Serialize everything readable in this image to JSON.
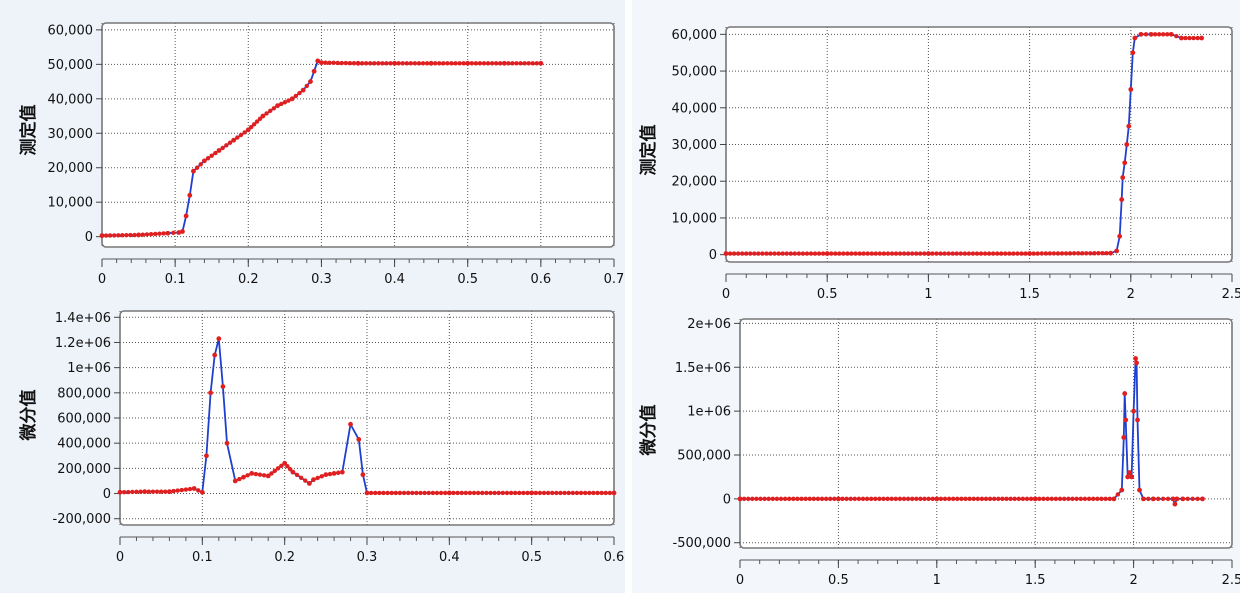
{
  "chart_data": [
    {
      "type": "line",
      "ylabel": "测定值",
      "xlim": [
        0,
        0.7
      ],
      "ylim": [
        -3000,
        62000
      ],
      "xticks": [
        0,
        0.1,
        0.2,
        0.3,
        0.4,
        0.5,
        0.6,
        0.7
      ],
      "xtick_labels": [
        "0",
        "0.1",
        "0.2",
        "0.3",
        "0.4",
        "0.5",
        "0.6",
        "0.7"
      ],
      "yticks": [
        0,
        10000,
        20000,
        30000,
        40000,
        50000,
        60000
      ],
      "ytick_labels": [
        "0",
        "10,000",
        "20,000",
        "30,000",
        "40,000",
        "50,000",
        "60,000"
      ],
      "grid": true,
      "line_color": "#1f3fd0",
      "marker_color": "#e02020",
      "series": [
        {
          "x": [
            0,
            0.05,
            0.09,
            0.105,
            0.11,
            0.115,
            0.12,
            0.125,
            0.14,
            0.16,
            0.18,
            0.2,
            0.22,
            0.24,
            0.26,
            0.275,
            0.285,
            0.29,
            0.295,
            0.3,
            0.35,
            0.4,
            0.45,
            0.5,
            0.55,
            0.6
          ],
          "y": [
            300,
            500,
            1000,
            1200,
            1500,
            6000,
            12000,
            19000,
            22000,
            25000,
            28000,
            31000,
            35000,
            38000,
            40000,
            42500,
            45000,
            48000,
            51000,
            50500,
            50300,
            50300,
            50300,
            50300,
            50300,
            50300
          ]
        }
      ]
    },
    {
      "type": "line",
      "ylabel": "微分值",
      "xlim": [
        0,
        0.6
      ],
      "ylim": [
        -250000,
        1450000
      ],
      "xticks": [
        0,
        0.1,
        0.2,
        0.3,
        0.4,
        0.5,
        0.6
      ],
      "xtick_labels": [
        "0",
        "0.1",
        "0.2",
        "0.3",
        "0.4",
        "0.5",
        "0.6"
      ],
      "yticks": [
        -200000,
        0,
        200000,
        400000,
        600000,
        800000,
        1000000,
        1200000,
        1400000
      ],
      "ytick_labels": [
        "-200,000",
        "0",
        "200,000",
        "400,000",
        "600,000",
        "800,000",
        "1e+06",
        "1.2e+06",
        "1.4e+06"
      ],
      "grid": true,
      "line_color": "#1f3fd0",
      "marker_color": "#e02020",
      "series": [
        {
          "x": [
            0,
            0.03,
            0.06,
            0.09,
            0.1,
            0.105,
            0.11,
            0.115,
            0.12,
            0.125,
            0.13,
            0.14,
            0.15,
            0.16,
            0.18,
            0.2,
            0.21,
            0.23,
            0.235,
            0.25,
            0.26,
            0.27,
            0.28,
            0.29,
            0.295,
            0.3,
            0.4,
            0.5,
            0.6
          ],
          "y": [
            10000,
            15000,
            15000,
            40000,
            10000,
            300000,
            800000,
            1100000,
            1230000,
            850000,
            400000,
            100000,
            130000,
            160000,
            140000,
            240000,
            170000,
            80000,
            110000,
            150000,
            160000,
            170000,
            550000,
            430000,
            150000,
            5000,
            5000,
            5000,
            5000
          ]
        }
      ]
    },
    {
      "type": "line",
      "ylabel": "测定值",
      "xlim": [
        0,
        2.5
      ],
      "ylim": [
        -2000,
        62000
      ],
      "xticks": [
        0,
        0.5,
        1,
        1.5,
        2,
        2.5
      ],
      "xtick_labels": [
        "0",
        "0.5",
        "1",
        "1.5",
        "2",
        "2.5"
      ],
      "yticks": [
        0,
        10000,
        20000,
        30000,
        40000,
        50000,
        60000
      ],
      "ytick_labels": [
        "0",
        "10,000",
        "20,000",
        "30,000",
        "40,000",
        "50,000",
        "60,000"
      ],
      "grid": true,
      "line_color": "#1f3fd0",
      "marker_color": "#e02020",
      "series": [
        {
          "x": [
            0,
            0.5,
            1,
            1.5,
            1.9,
            1.93,
            1.945,
            1.955,
            1.96,
            1.97,
            1.98,
            1.99,
            2.0,
            2.01,
            2.02,
            2.05,
            2.1,
            2.2,
            2.25,
            2.35
          ],
          "y": [
            300,
            300,
            300,
            300,
            400,
            1000,
            5000,
            15000,
            21000,
            25000,
            30000,
            35000,
            45000,
            55000,
            59000,
            60000,
            60000,
            60000,
            59000,
            59000
          ]
        }
      ]
    },
    {
      "type": "line",
      "ylabel": "微分值",
      "xlim": [
        0,
        2.5
      ],
      "ylim": [
        -560000,
        2050000
      ],
      "xticks": [
        0,
        0.5,
        1,
        1.5,
        2,
        2.5
      ],
      "xtick_labels": [
        "0",
        "0.5",
        "1",
        "1.5",
        "2",
        "2.5"
      ],
      "yticks": [
        -500000,
        0,
        500000,
        1000000,
        1500000,
        2000000
      ],
      "ytick_labels": [
        "-500,000",
        "0",
        "500,000",
        "1e+06",
        "1.5e+06",
        "2e+06"
      ],
      "grid": true,
      "line_color": "#1f3fd0",
      "marker_color": "#e02020",
      "series": [
        {
          "x": [
            0,
            0.5,
            1,
            1.5,
            1.9,
            1.94,
            1.95,
            1.955,
            1.96,
            1.97,
            1.98,
            1.99,
            2.0,
            2.01,
            2.015,
            2.02,
            2.03,
            2.05,
            2.1,
            2.2,
            2.21,
            2.22,
            2.25,
            2.35
          ],
          "y": [
            0,
            0,
            0,
            0,
            0,
            100000,
            700000,
            1200000,
            900000,
            250000,
            300000,
            250000,
            1000000,
            1600000,
            1550000,
            900000,
            100000,
            0,
            0,
            0,
            -60000,
            0,
            0,
            0
          ]
        }
      ]
    }
  ]
}
